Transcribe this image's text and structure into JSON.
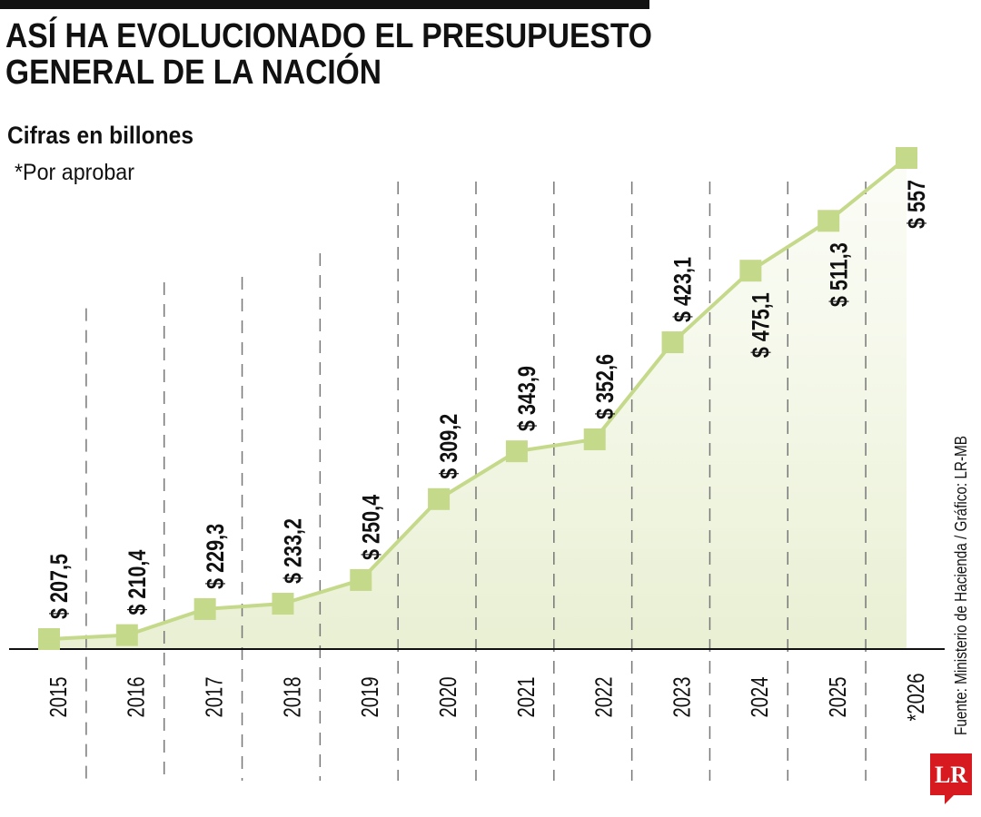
{
  "chart_data": {
    "type": "line",
    "title": [
      "ASÍ HA EVOLUCIONADO EL PRESUPUESTO",
      "GENERAL DE LA NACIÓN"
    ],
    "subtitle": "Cifras en billones",
    "note": "*Por aprobar",
    "source": "Fuente: Ministerio de Hacienda / Gráfico: LR-MB",
    "logo": "LR",
    "categories": [
      "2015",
      "2016",
      "2017",
      "2018",
      "2019",
      "2020",
      "2021",
      "2022",
      "2023",
      "2024",
      "2025",
      "*2026"
    ],
    "values": [
      207.5,
      210.4,
      229.3,
      233.2,
      250.4,
      309.2,
      343.9,
      352.6,
      423.1,
      475.1,
      511.3,
      557
    ],
    "value_labels": [
      "$ 207,5",
      "$ 210,4",
      "$ 229,3",
      "$ 233,2",
      "$ 250,4",
      "$ 309,2",
      "$ 343,9",
      "$ 352,6",
      "$ 423,1",
      "$ 475,1",
      "$ 511,3",
      "$ 557"
    ],
    "color": "#c5d98a"
  }
}
